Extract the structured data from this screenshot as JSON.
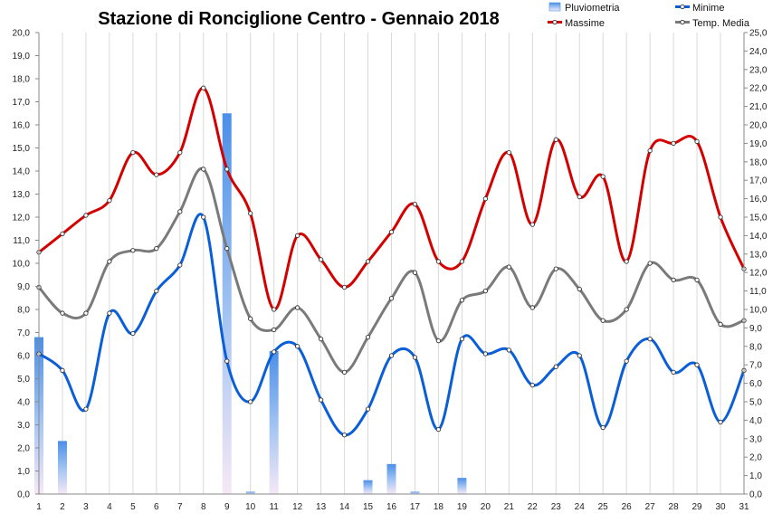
{
  "chart_data": {
    "type": "line",
    "title": "Stazione di Ronciglione Centro - Gennaio 2018",
    "x": [
      1,
      2,
      3,
      4,
      5,
      6,
      7,
      8,
      9,
      10,
      11,
      12,
      13,
      14,
      15,
      16,
      17,
      18,
      19,
      20,
      21,
      22,
      23,
      24,
      25,
      26,
      27,
      28,
      29,
      30,
      31
    ],
    "x_tick_labels": [
      "1",
      "2",
      "3",
      "4",
      "5",
      "6",
      "7",
      "8",
      "9",
      "10",
      "11",
      "12",
      "13",
      "14",
      "15",
      "16",
      "17",
      "18",
      "19",
      "20",
      "21",
      "22",
      "23",
      "24",
      "25",
      "26",
      "27",
      "28",
      "29",
      "30",
      "31"
    ],
    "y_left": {
      "range": [
        0,
        20
      ],
      "step": 1,
      "tick_labels": [
        "0,0",
        "1,0",
        "2,0",
        "3,0",
        "4,0",
        "5,0",
        "6,0",
        "7,0",
        "8,0",
        "9,0",
        "10,0",
        "11,0",
        "12,0",
        "13,0",
        "14,0",
        "15,0",
        "16,0",
        "17,0",
        "18,0",
        "19,0",
        "20,0"
      ]
    },
    "y_right": {
      "range": [
        0,
        25
      ],
      "step": 1,
      "tick_labels": [
        "0,0",
        "1,0",
        "2,0",
        "3,0",
        "4,0",
        "5,0",
        "6,0",
        "7,0",
        "8,0",
        "9,0",
        "10,0",
        "11,0",
        "12,0",
        "13,0",
        "14,0",
        "15,0",
        "16,0",
        "17,0",
        "18,0",
        "19,0",
        "20,0",
        "21,0",
        "22,0",
        "23,0",
        "24,0",
        "25,0"
      ]
    },
    "grid": {
      "vertical": true,
      "horizontal": false
    },
    "legend": {
      "position": "top-right"
    },
    "series": [
      {
        "name": "Pluviometria",
        "type": "bar",
        "axis": "left",
        "color": "#4a90e2",
        "values": [
          6.8,
          2.3,
          0,
          0,
          0,
          0,
          0,
          0,
          16.5,
          0.1,
          6.2,
          0,
          0,
          0,
          0.6,
          1.3,
          0.1,
          0,
          0.7,
          0,
          0,
          0,
          0,
          0,
          0,
          0,
          0,
          0,
          0,
          0,
          0
        ]
      },
      {
        "name": "Minime",
        "type": "line",
        "axis": "right",
        "color": "#0a5ed7",
        "values": [
          7.6,
          6.7,
          4.6,
          9.8,
          8.7,
          11.0,
          12.4,
          15.0,
          7.2,
          5.0,
          7.7,
          8.0,
          5.1,
          3.2,
          4.6,
          7.5,
          7.4,
          3.5,
          8.4,
          7.6,
          7.8,
          5.9,
          6.9,
          7.5,
          3.6,
          7.2,
          8.4,
          6.6,
          7.0,
          3.9,
          6.7
        ]
      },
      {
        "name": "Massime",
        "type": "line",
        "axis": "right",
        "color": "#d40000",
        "values": [
          13.1,
          14.1,
          15.1,
          15.9,
          18.5,
          17.3,
          18.5,
          22.0,
          17.6,
          15.2,
          10.0,
          14.0,
          12.7,
          11.2,
          12.6,
          14.2,
          15.7,
          12.6,
          12.6,
          16.0,
          18.5,
          14.6,
          19.2,
          16.1,
          17.2,
          12.6,
          18.6,
          19.0,
          19.1,
          15.0,
          12.2
        ]
      },
      {
        "name": "Temp. Media",
        "type": "line",
        "axis": "right",
        "color": "#7a7a7a",
        "values": [
          11.2,
          9.8,
          9.8,
          12.6,
          13.2,
          13.3,
          15.3,
          17.6,
          13.3,
          9.5,
          8.9,
          10.1,
          8.4,
          6.6,
          8.5,
          10.6,
          12.0,
          8.3,
          10.5,
          11.0,
          12.3,
          10.1,
          12.2,
          11.1,
          9.4,
          10.0,
          12.5,
          11.6,
          11.6,
          9.2,
          9.4
        ]
      }
    ]
  }
}
